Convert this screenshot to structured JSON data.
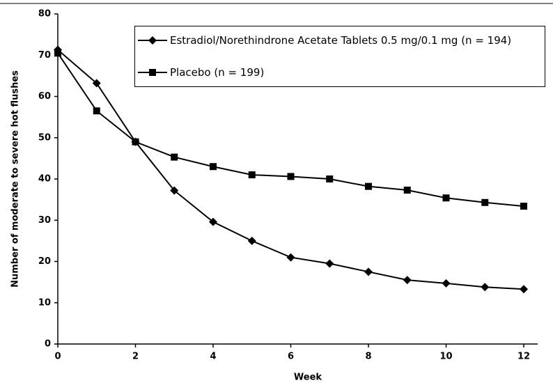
{
  "chart_data": {
    "type": "line",
    "x_label": "Week",
    "y_label": "Number of moderate to severe hot flushes",
    "x": [
      0,
      1,
      2,
      3,
      4,
      5,
      6,
      7,
      8,
      9,
      10,
      11,
      12
    ],
    "series": [
      {
        "name": "Estradiol/Norethindrone Acetate Tablets 0.5 mg/0.1 mg (n = 194)",
        "color": "#000000",
        "marker": "diamond",
        "values": [
          71.3,
          63.2,
          49,
          37.2,
          29.6,
          25,
          21,
          19.5,
          17.5,
          15.5,
          14.7,
          13.8,
          13.3
        ]
      },
      {
        "name": "Placebo (n = 199)",
        "color": "#000000",
        "marker": "square",
        "values": [
          70.5,
          56.5,
          49,
          45.3,
          43,
          41,
          40.6,
          40,
          38.2,
          37.3,
          35.4,
          34.3,
          33.4
        ]
      }
    ],
    "xlim": [
      0,
      12
    ],
    "xticks": [
      0,
      2,
      4,
      6,
      8,
      10,
      12
    ],
    "ylim": [
      0,
      80
    ],
    "yticks": [
      0,
      10,
      20,
      30,
      40,
      50,
      60,
      70,
      80
    ],
    "grid": false,
    "legend_position": "top-right"
  }
}
